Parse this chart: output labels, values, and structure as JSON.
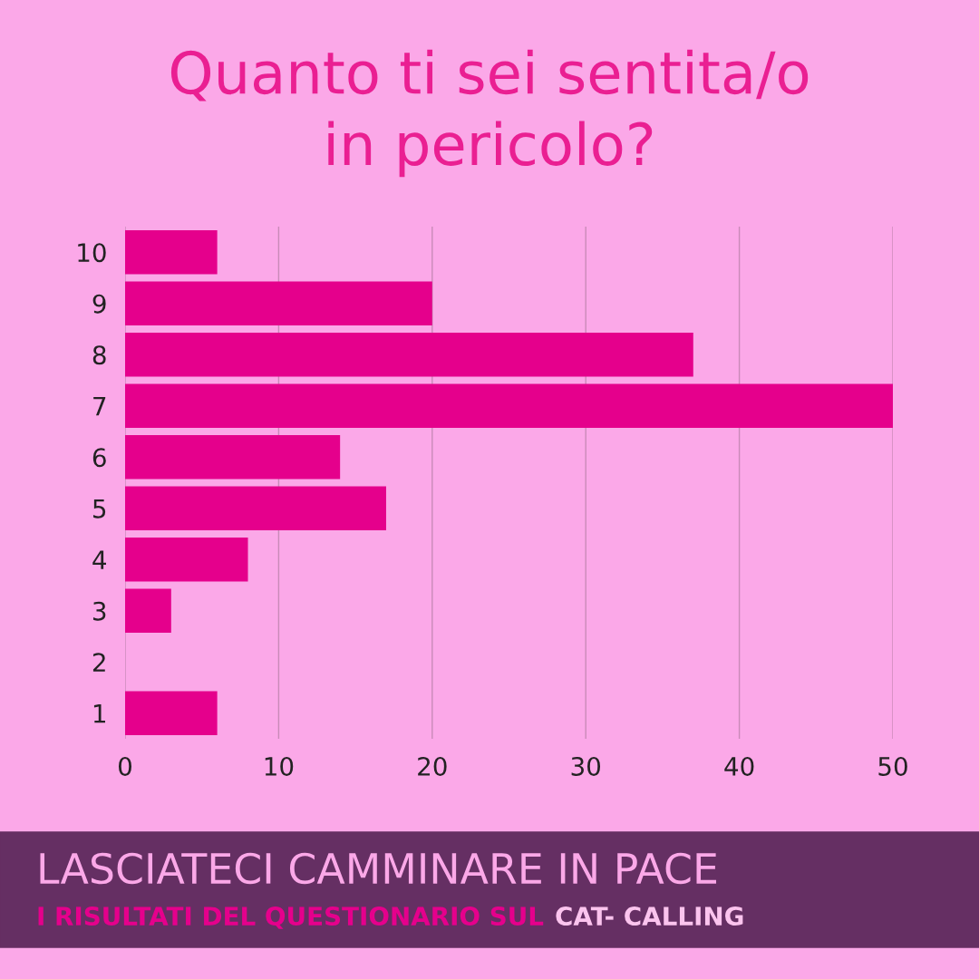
{
  "chart_data": {
    "type": "bar",
    "orientation": "horizontal",
    "title": "Quanto ti sei sentita/o\nin pericolo?",
    "categories": [
      "10",
      "9",
      "8",
      "7",
      "6",
      "5",
      "4",
      "3",
      "2",
      "1"
    ],
    "values": [
      6,
      20,
      37,
      50,
      14,
      17,
      8,
      3,
      0,
      6
    ],
    "color": "#e5008c",
    "xlim": [
      0,
      50
    ],
    "xticks": [
      0,
      10,
      20,
      30,
      40,
      50
    ],
    "grid": "x",
    "legend": false,
    "annotations": [
      "LASCIATECI CAMMINARE IN PACE",
      "I RISULTATI DEL QUESTIONARIO SUL",
      "CAT- CALLING"
    ]
  }
}
